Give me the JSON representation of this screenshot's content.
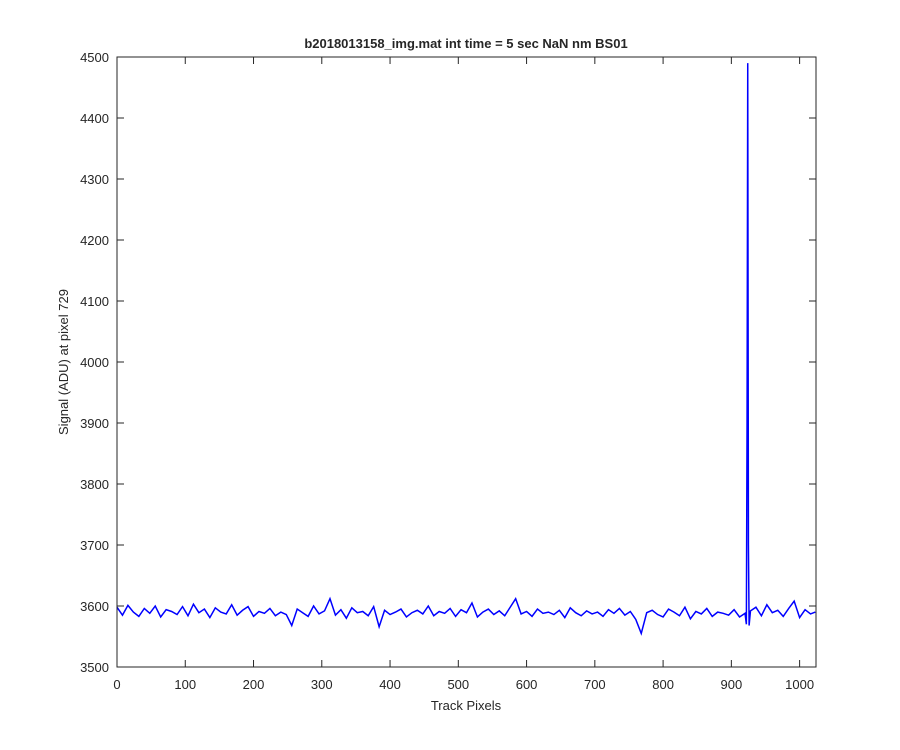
{
  "chart_data": {
    "type": "line",
    "title": "b2018013158_img.mat int time = 5 sec  NaN nm BS01",
    "x_label": "Track Pixels",
    "y_label": "Signal (ADU) at pixel 729",
    "xlim": [
      0,
      1024
    ],
    "ylim": [
      3500,
      4500
    ],
    "xticks": [
      0,
      100,
      200,
      300,
      400,
      500,
      600,
      700,
      800,
      900,
      1000
    ],
    "yticks": [
      3500,
      3600,
      3700,
      3800,
      3900,
      4000,
      4100,
      4200,
      4300,
      4400,
      4500
    ],
    "grid": false,
    "x": [
      0,
      8,
      16,
      24,
      32,
      40,
      48,
      56,
      64,
      72,
      80,
      88,
      96,
      104,
      112,
      120,
      128,
      136,
      144,
      152,
      160,
      168,
      176,
      184,
      192,
      200,
      208,
      216,
      224,
      232,
      240,
      248,
      256,
      264,
      272,
      280,
      288,
      296,
      304,
      312,
      320,
      328,
      336,
      344,
      352,
      360,
      368,
      376,
      384,
      392,
      400,
      408,
      416,
      424,
      432,
      440,
      448,
      456,
      464,
      472,
      480,
      488,
      496,
      504,
      512,
      520,
      528,
      536,
      544,
      552,
      560,
      568,
      576,
      584,
      592,
      600,
      608,
      616,
      624,
      632,
      640,
      648,
      656,
      664,
      672,
      680,
      688,
      696,
      704,
      712,
      720,
      728,
      736,
      744,
      752,
      760,
      768,
      776,
      784,
      792,
      800,
      808,
      816,
      824,
      832,
      840,
      848,
      856,
      864,
      872,
      880,
      888,
      896,
      904,
      912,
      920,
      922,
      923,
      924,
      925,
      926,
      928,
      936,
      944,
      952,
      960,
      968,
      976,
      984,
      992,
      1000,
      1008,
      1016,
      1023
    ],
    "series": [
      {
        "color": "#0000ff",
        "values": [
          3598,
          3585,
          3601,
          3590,
          3583,
          3596,
          3588,
          3600,
          3582,
          3594,
          3591,
          3586,
          3599,
          3584,
          3603,
          3589,
          3595,
          3581,
          3597,
          3590,
          3587,
          3602,
          3585,
          3593,
          3599,
          3583,
          3591,
          3588,
          3596,
          3584,
          3590,
          3586,
          3568,
          3595,
          3589,
          3583,
          3600,
          3587,
          3592,
          3612,
          3585,
          3594,
          3580,
          3597,
          3589,
          3591,
          3584,
          3599,
          3566,
          3593,
          3586,
          3590,
          3595,
          3582,
          3589,
          3593,
          3587,
          3600,
          3584,
          3591,
          3588,
          3596,
          3583,
          3594,
          3589,
          3605,
          3582,
          3590,
          3595,
          3586,
          3592,
          3584,
          3598,
          3612,
          3587,
          3591,
          3583,
          3595,
          3588,
          3590,
          3586,
          3593,
          3581,
          3597,
          3589,
          3584,
          3592,
          3587,
          3590,
          3583,
          3594,
          3588,
          3596,
          3585,
          3591,
          3578,
          3555,
          3589,
          3593,
          3586,
          3582,
          3595,
          3590,
          3584,
          3598,
          3579,
          3591,
          3587,
          3596,
          3583,
          3590,
          3588,
          3585,
          3594,
          3582,
          3588,
          3570,
          3900,
          4490,
          3700,
          3568,
          3592,
          3598,
          3584,
          3602,
          3589,
          3593,
          3583,
          3596,
          3608,
          3581,
          3594,
          3587,
          3590
        ]
      }
    ]
  }
}
